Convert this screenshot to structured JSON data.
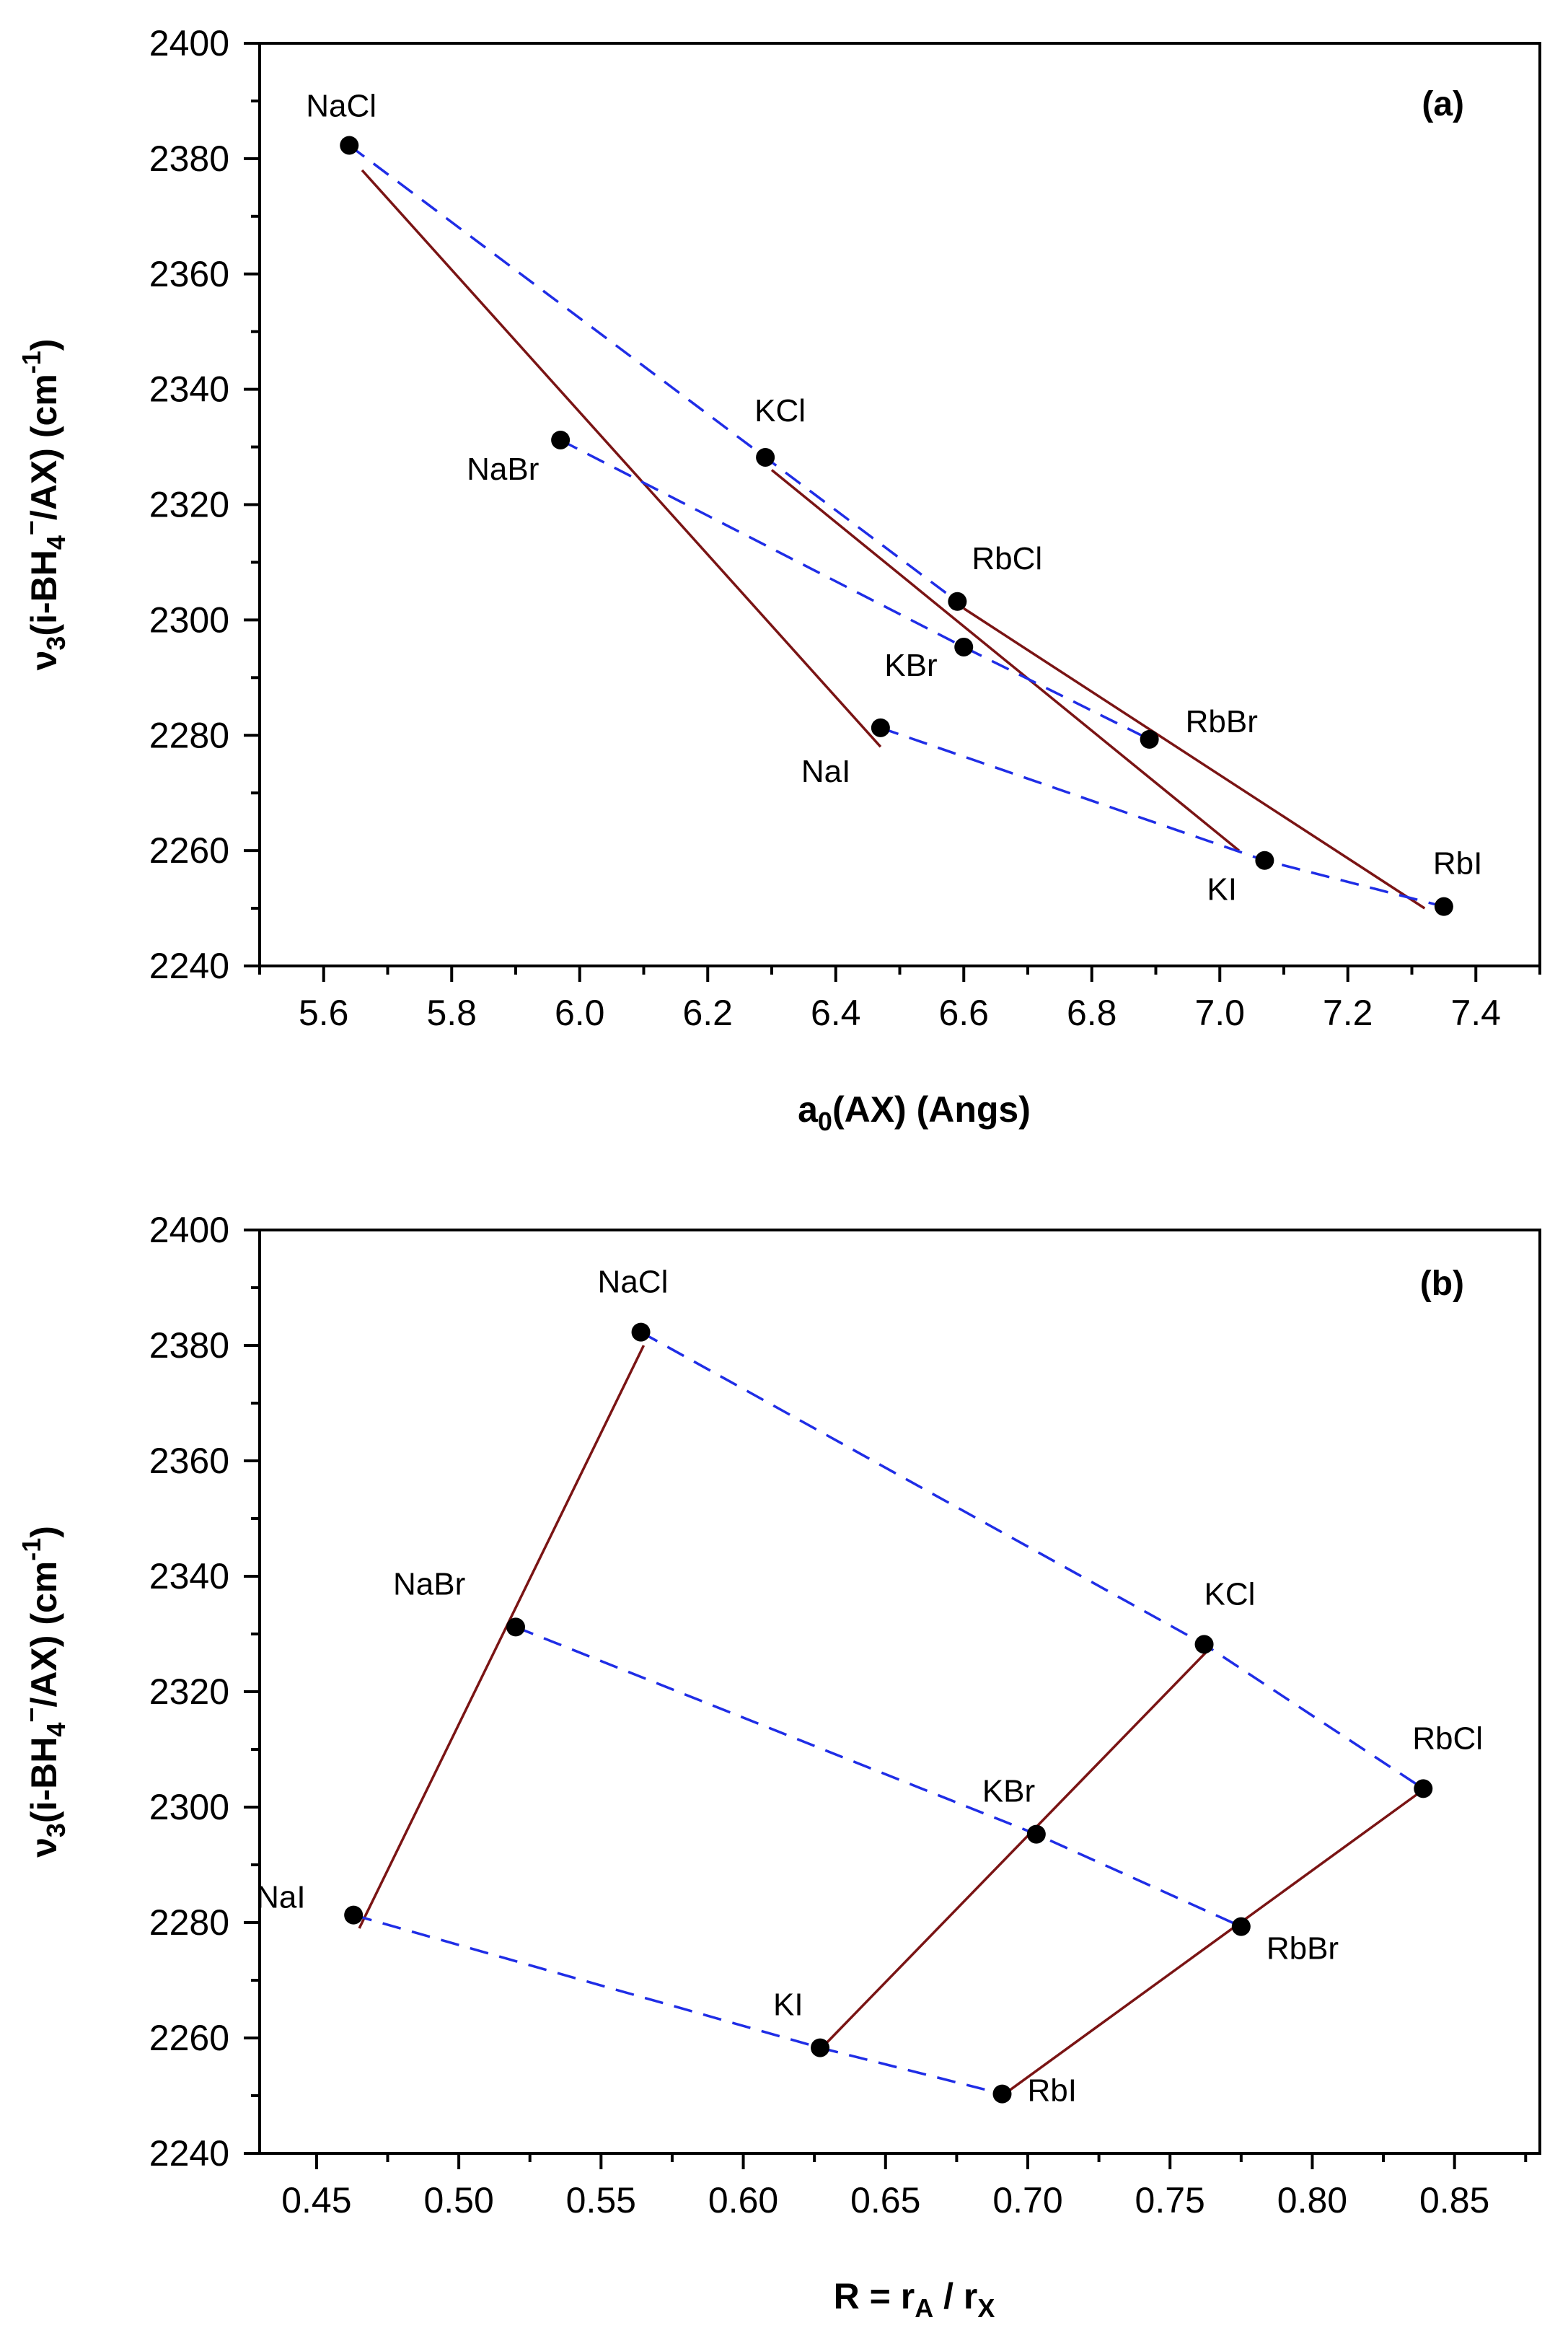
{
  "chart_data": [
    {
      "type": "scatter",
      "panel_label": "(a)",
      "xlabel": "a0(AX) (Angs)",
      "ylabel": "ν3(i-BH4−/AX) (cm−1)",
      "xlim": [
        5.5,
        7.5
      ],
      "ylim": [
        2240,
        2400
      ],
      "x_ticks": [
        "5.6",
        "5.8",
        "6.0",
        "6.2",
        "6.4",
        "6.6",
        "6.8",
        "7.0",
        "7.2",
        "7.4"
      ],
      "y_ticks": [
        "2240",
        "2260",
        "2280",
        "2300",
        "2320",
        "2340",
        "2360",
        "2380",
        "2400"
      ],
      "points": [
        {
          "label": "NaCl",
          "x": 5.64,
          "y": 2382.3
        },
        {
          "label": "NaBr",
          "x": 5.97,
          "y": 2331.2
        },
        {
          "label": "NaI",
          "x": 6.47,
          "y": 2281.3
        },
        {
          "label": "KCl",
          "x": 6.29,
          "y": 2328.2
        },
        {
          "label": "KBr",
          "x": 6.6,
          "y": 2295.3
        },
        {
          "label": "KI",
          "x": 7.07,
          "y": 2258.3
        },
        {
          "label": "RbCl",
          "x": 6.59,
          "y": 2303.2
        },
        {
          "label": "RbBr",
          "x": 6.89,
          "y": 2279.3
        },
        {
          "label": "RbI",
          "x": 7.35,
          "y": 2250.3
        }
      ],
      "dashed_lines": [
        {
          "name": "Cl-series",
          "points": [
            [
              5.64,
              2382.3
            ],
            [
              6.29,
              2328.2
            ],
            [
              6.59,
              2303.2
            ]
          ]
        },
        {
          "name": "Br-series",
          "points": [
            [
              5.97,
              2331.2
            ],
            [
              6.6,
              2295.3
            ],
            [
              6.89,
              2279.3
            ]
          ]
        },
        {
          "name": "I-series",
          "points": [
            [
              6.47,
              2281.3
            ],
            [
              7.07,
              2258.3
            ],
            [
              7.35,
              2250.3
            ]
          ]
        }
      ],
      "solid_lines": [
        {
          "name": "Na-series",
          "points": [
            [
              5.66,
              2378
            ],
            [
              6.47,
              2278
            ]
          ]
        },
        {
          "name": "K-series",
          "points": [
            [
              6.3,
              2326
            ],
            [
              7.03,
              2260
            ]
          ]
        },
        {
          "name": "Rb-series",
          "points": [
            [
              6.6,
              2302
            ],
            [
              7.32,
              2250
            ]
          ]
        }
      ]
    },
    {
      "type": "scatter",
      "panel_label": "(b)",
      "xlabel": "R = rA / rX",
      "ylabel": "ν3(i-BH4−/AX) (cm−1)",
      "xlim": [
        0.43,
        0.88
      ],
      "ylim": [
        2240,
        2400
      ],
      "x_ticks": [
        "0.45",
        "0.50",
        "0.55",
        "0.60",
        "0.65",
        "0.70",
        "0.75",
        "0.80",
        "0.85"
      ],
      "y_ticks": [
        "2240",
        "2260",
        "2280",
        "2300",
        "2320",
        "2340",
        "2360",
        "2380",
        "2400"
      ],
      "points": [
        {
          "label": "NaCl",
          "x": 0.564,
          "y": 2382.3
        },
        {
          "label": "NaBr",
          "x": 0.52,
          "y": 2331.2
        },
        {
          "label": "NaI",
          "x": 0.463,
          "y": 2281.3
        },
        {
          "label": "KCl",
          "x": 0.762,
          "y": 2328.2
        },
        {
          "label": "KBr",
          "x": 0.703,
          "y": 2295.3
        },
        {
          "label": "KI",
          "x": 0.627,
          "y": 2258.3
        },
        {
          "label": "RbCl",
          "x": 0.839,
          "y": 2303.2
        },
        {
          "label": "RbBr",
          "x": 0.775,
          "y": 2279.3
        },
        {
          "label": "RbI",
          "x": 0.691,
          "y": 2250.3
        }
      ],
      "dashed_lines": [
        {
          "name": "Cl-series",
          "points": [
            [
              0.564,
              2382.3
            ],
            [
              0.762,
              2328.2
            ],
            [
              0.839,
              2303.2
            ]
          ]
        },
        {
          "name": "Br-series",
          "points": [
            [
              0.52,
              2331.2
            ],
            [
              0.703,
              2295.3
            ],
            [
              0.775,
              2279.3
            ]
          ]
        },
        {
          "name": "I-series",
          "points": [
            [
              0.463,
              2281.3
            ],
            [
              0.627,
              2258.3
            ],
            [
              0.691,
              2250.3
            ]
          ]
        }
      ],
      "solid_lines": [
        {
          "name": "Na-series",
          "points": [
            [
              0.565,
              2380
            ],
            [
              0.465,
              2279
            ]
          ]
        },
        {
          "name": "K-series",
          "points": [
            [
              0.763,
              2327
            ],
            [
              0.627,
              2258
            ]
          ]
        },
        {
          "name": "Rb-series",
          "points": [
            [
              0.839,
              2303
            ],
            [
              0.691,
              2250
            ]
          ]
        }
      ]
    }
  ]
}
